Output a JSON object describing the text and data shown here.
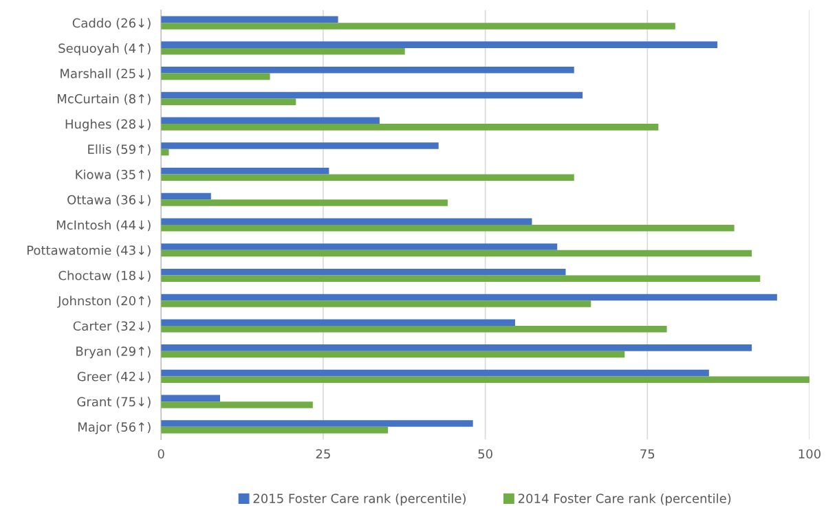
{
  "chart_data": {
    "type": "bar",
    "orientation": "horizontal",
    "categories": [
      "Caddo (26↓)",
      "Sequoyah (4↑)",
      "Marshall (25↓)",
      "McCurtain (8↑)",
      "Hughes (28↓)",
      "Ellis (59↑)",
      "Kiowa (35↑)",
      "Ottawa (36↓)",
      "McIntosh (44↓)",
      "Pottawatomie (43↓)",
      "Choctaw (18↓)",
      "Johnston (20↑)",
      "Carter (32↓)",
      "Bryan (29↑)",
      "Greer (42↓)",
      "Grant (75↓)",
      "Major (56↑)"
    ],
    "series": [
      {
        "name": "2015 Foster Care rank (percentile)",
        "color": "#4472c4",
        "values": [
          27.3,
          85.8,
          63.7,
          65.0,
          33.7,
          42.8,
          25.9,
          7.7,
          57.2,
          61.1,
          62.4,
          95.0,
          54.6,
          91.1,
          84.5,
          9.1,
          48.1
        ]
      },
      {
        "name": "2014 Foster Care rank (percentile)",
        "color": "#70ad47",
        "values": [
          79.3,
          37.6,
          16.8,
          20.8,
          76.7,
          1.2,
          63.7,
          44.2,
          88.4,
          91.1,
          92.4,
          66.3,
          78.0,
          71.5,
          100,
          23.4,
          35.0
        ]
      }
    ],
    "xlim": [
      0,
      100
    ],
    "xticks": [
      0,
      25,
      50,
      75,
      100
    ],
    "grid": "x",
    "legend": "bottom"
  }
}
